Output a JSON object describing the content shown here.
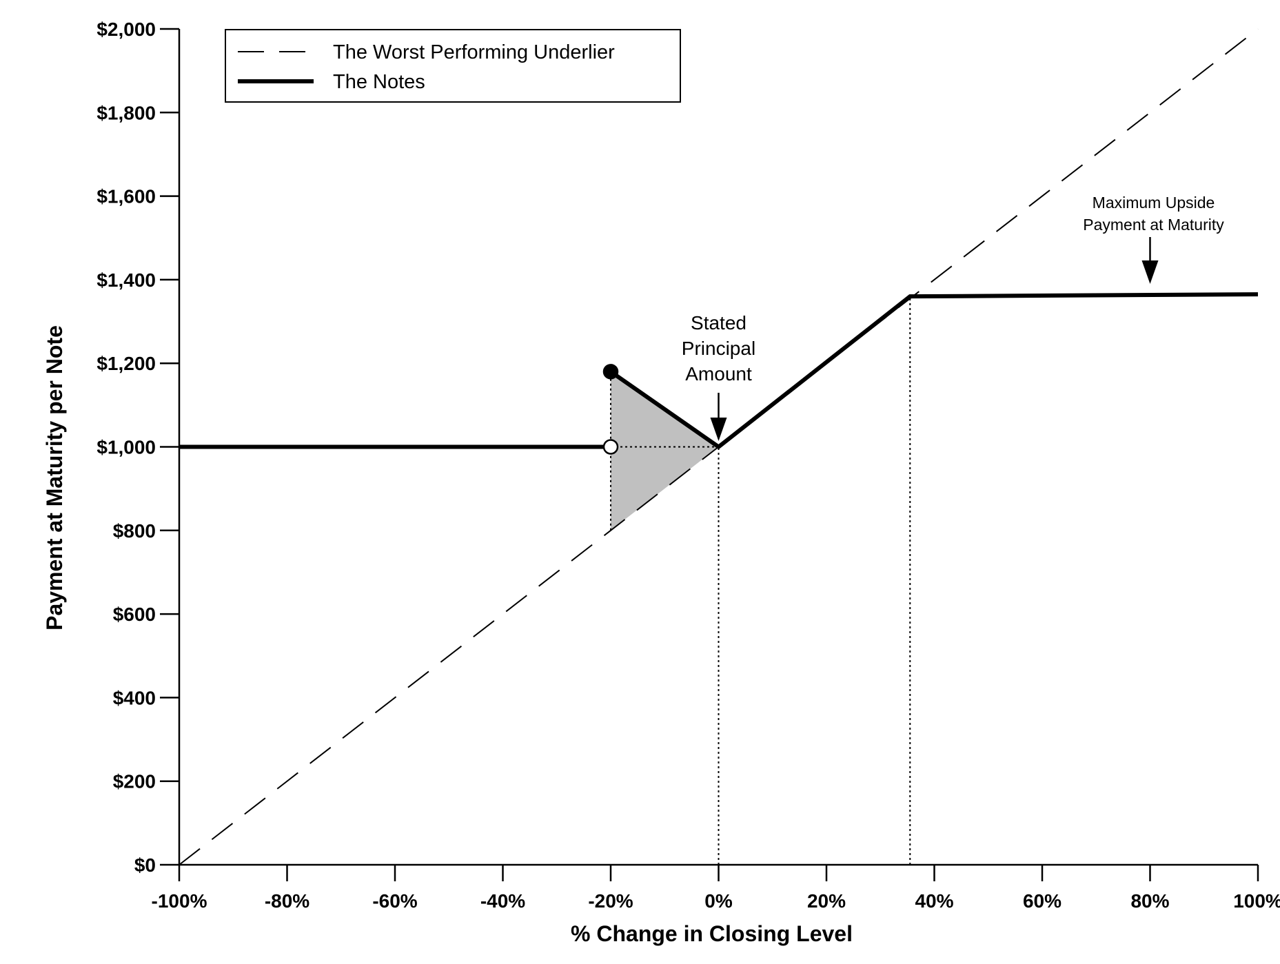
{
  "chart_data": {
    "type": "line",
    "xlabel": "% Change in Closing Level",
    "ylabel": "Payment at Maturity per Note",
    "xlim": [
      -100,
      100
    ],
    "ylim": [
      0,
      2000
    ],
    "x_ticks": [
      "-100%",
      "-80%",
      "-60%",
      "-40%",
      "-20%",
      "0%",
      "20%",
      "40%",
      "60%",
      "80%",
      "100%"
    ],
    "x_tick_values": [
      -100,
      -80,
      -60,
      -40,
      -20,
      0,
      20,
      40,
      60,
      80,
      100
    ],
    "y_ticks": [
      "$0",
      "$200",
      "$400",
      "$600",
      "$800",
      "$1,000",
      "$1,200",
      "$1,400",
      "$1,600",
      "$1,800",
      "$2,000"
    ],
    "y_tick_values": [
      0,
      200,
      400,
      600,
      800,
      1000,
      1200,
      1400,
      1600,
      1800,
      2000
    ],
    "grid": false,
    "legend": {
      "placement": "top-left",
      "entries": [
        {
          "label": "The Worst Performing Underlier",
          "style": "dashed"
        },
        {
          "label": "The Notes",
          "style": "solid-thick"
        }
      ]
    },
    "series": [
      {
        "name": "The Worst Performing Underlier",
        "style": "dashed",
        "x": [
          -100,
          100
        ],
        "y": [
          0,
          2000
        ]
      },
      {
        "name": "The Notes",
        "style": "solid-thick",
        "segments": [
          {
            "x": [
              -100,
              -20
            ],
            "y": [
              1000,
              1000
            ]
          },
          {
            "x": [
              -20,
              0,
              35.5,
              100
            ],
            "y": [
              1180,
              1000,
              1360,
              1365
            ]
          }
        ]
      }
    ],
    "markers": [
      {
        "x": -20,
        "y": 1180,
        "type": "filled-circle"
      },
      {
        "x": -20,
        "y": 1000,
        "type": "open-circle"
      }
    ],
    "shaded_region": {
      "x": [
        -20,
        0,
        -20
      ],
      "y": [
        1180,
        1000,
        800
      ],
      "color": "#c0c0c0"
    },
    "reference_lines": [
      {
        "x": [
          -20,
          -20
        ],
        "y": [
          800,
          1180
        ]
      },
      {
        "x": [
          -20,
          0
        ],
        "y": [
          1000,
          1000
        ]
      },
      {
        "x": [
          0,
          0
        ],
        "y": [
          0,
          1000
        ]
      },
      {
        "x": [
          35.5,
          35.5
        ],
        "y": [
          0,
          1360
        ]
      }
    ],
    "annotations": [
      {
        "lines": [
          "Stated",
          "Principal",
          "Amount"
        ],
        "points_to": {
          "x": 0,
          "y": 1000
        }
      },
      {
        "lines": [
          "Maximum Upside",
          "Payment at Maturity"
        ],
        "points_to": {
          "x": 80,
          "y": 1365
        }
      }
    ]
  }
}
